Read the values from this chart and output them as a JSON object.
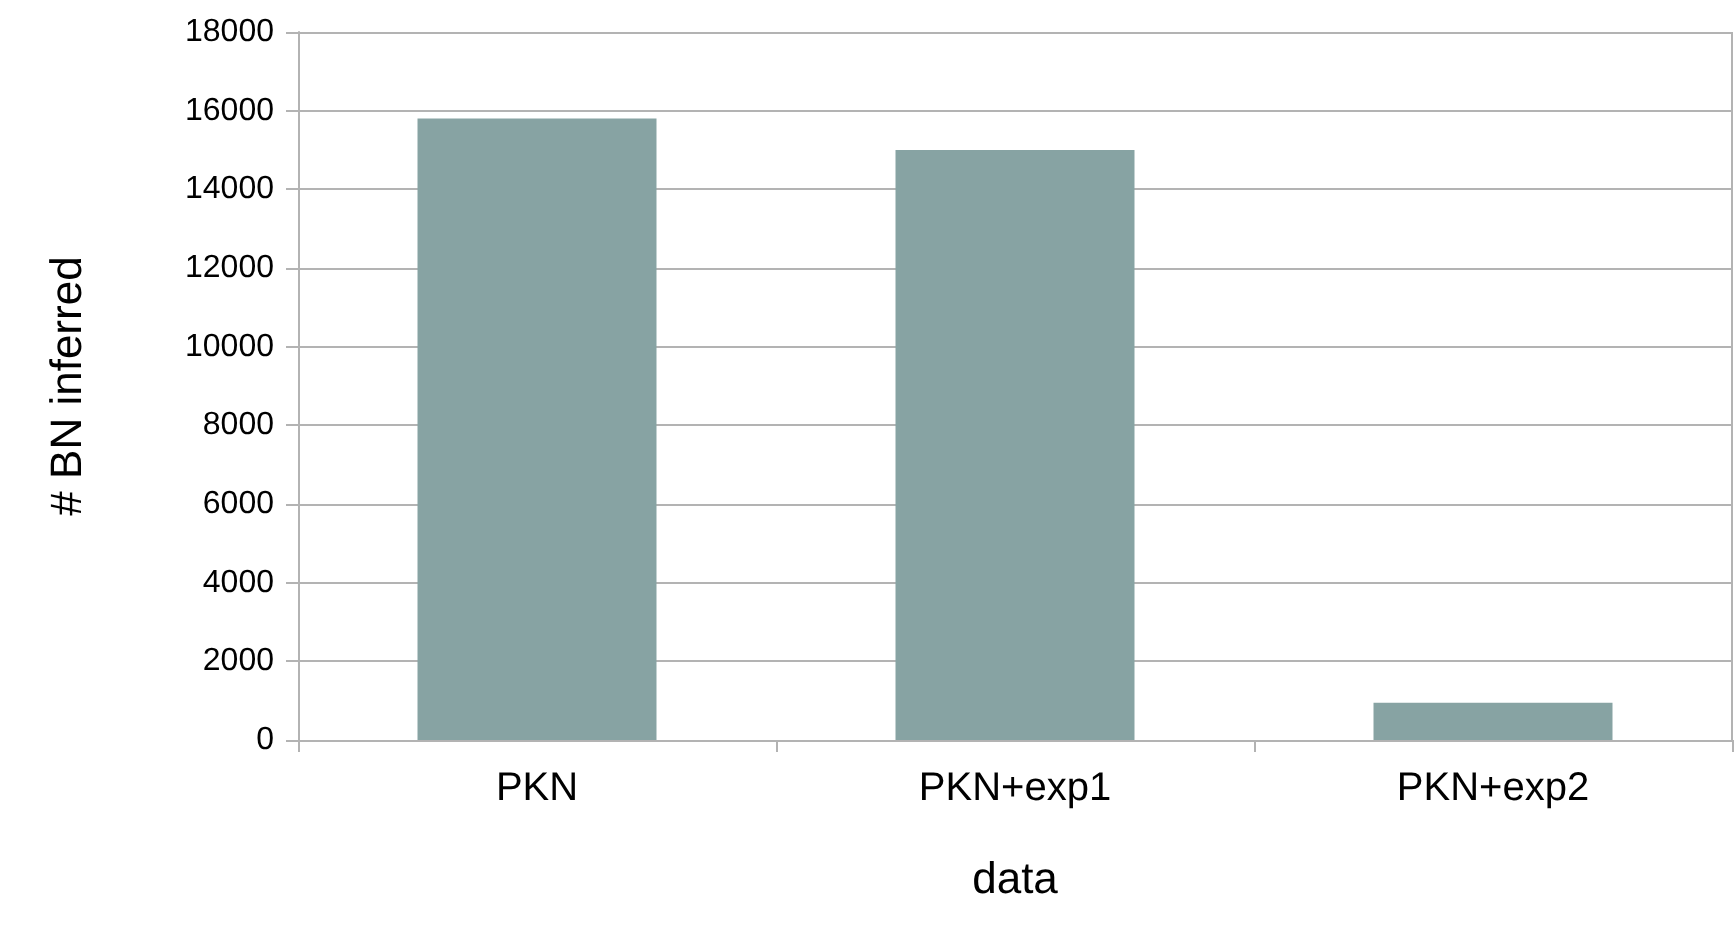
{
  "chart_data": {
    "type": "bar",
    "xlabel": "data",
    "ylabel": "# BN inferred",
    "categories": [
      "PKN",
      "PKN+exp1",
      "PKN+exp2"
    ],
    "values": [
      15800,
      15000,
      950
    ],
    "color": "#87a3a3",
    "ylim": [
      0,
      18000
    ],
    "yticks": [
      0,
      2000,
      4000,
      6000,
      8000,
      10000,
      12000,
      14000,
      16000,
      18000
    ],
    "grid": "y"
  }
}
